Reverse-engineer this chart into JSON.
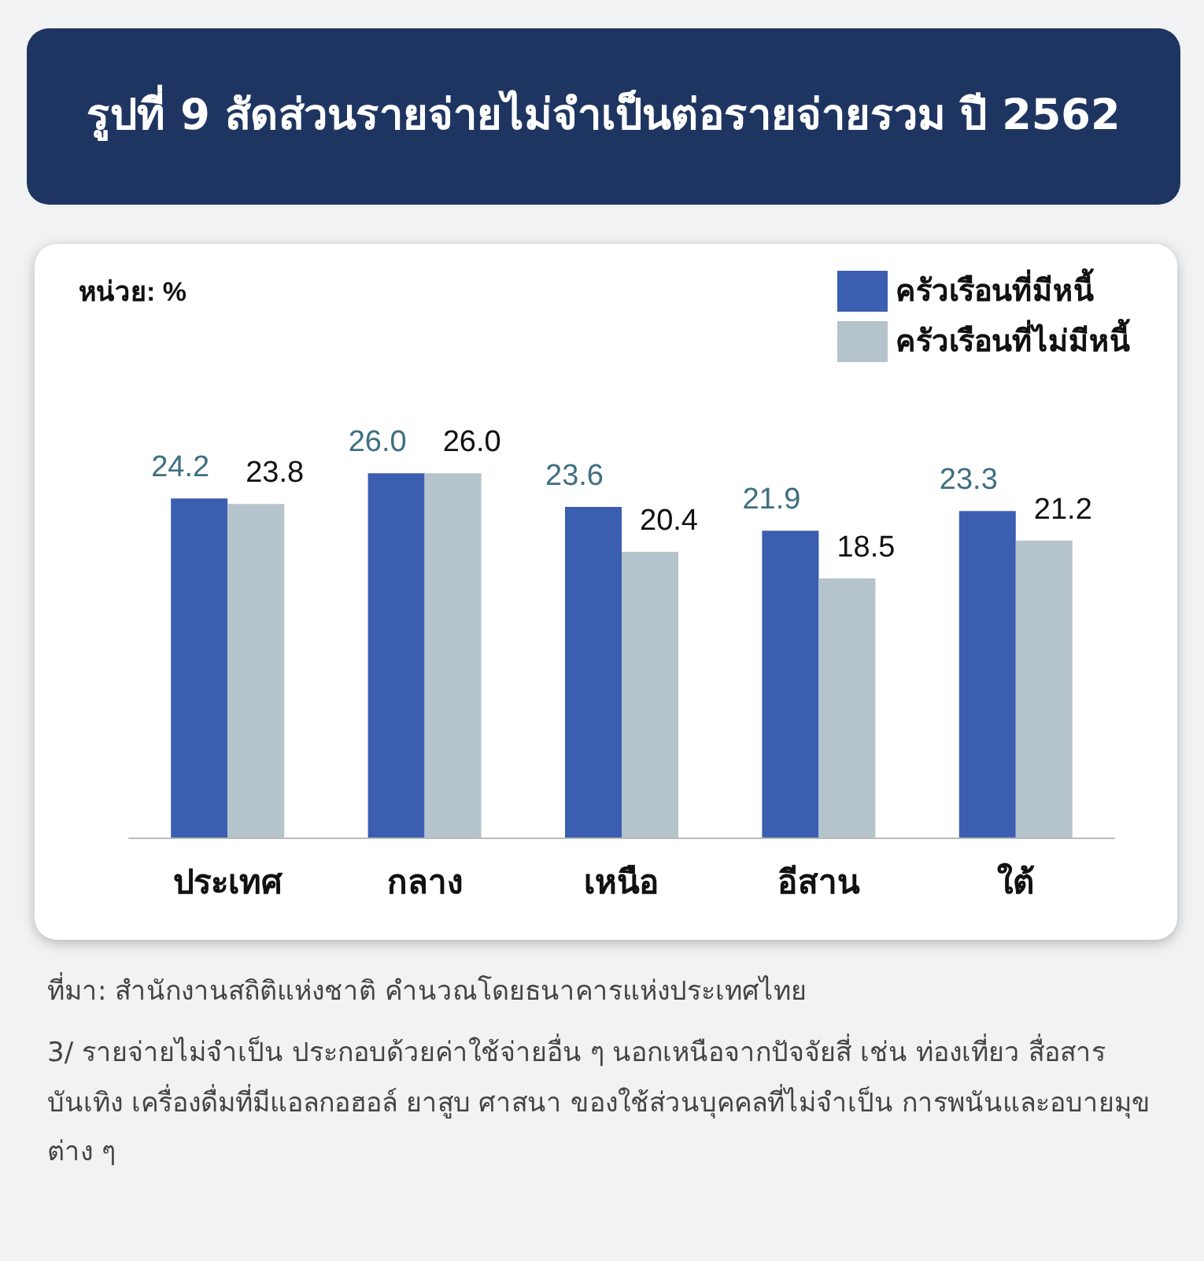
{
  "chart_data": {
    "type": "bar",
    "title": "รูปที่ 9 สัดส่วนรายจ่ายไม่จำเป็นต่อรายจ่ายรวม ปี 2562",
    "categories": [
      "ประเทศ",
      "กลาง",
      "เหนือ",
      "อีสาน",
      "ใต้"
    ],
    "series": [
      {
        "name": "ครัวเรือนที่มีหนี้",
        "color": "#3b5eb0",
        "values": [
          24.2,
          26.0,
          23.6,
          21.9,
          23.3
        ],
        "value_labels": [
          "24.2",
          "26.0",
          "23.6",
          "21.9",
          "23.3"
        ]
      },
      {
        "name": "ครัวเรือนที่ไม่มีหนี้",
        "color": "#b5c3cb",
        "values": [
          23.8,
          26.0,
          20.4,
          18.5,
          21.2
        ],
        "value_labels": [
          "23.8",
          "26.0",
          "20.4",
          "18.5",
          "21.2"
        ]
      }
    ],
    "legend": "top right",
    "tick_labels": "x",
    "annotations": [
      "หน่วย: %",
      "ที่มา: สำนักงานสถิติแห่งชาติ คำนวณโดยธนาคารแห่งประเทศไทย",
      "3/ รายจ่ายไม่จำเป็น ประกอบด้วยค่าใช้จ่ายอื่น ๆ นอกเหนือจากปัจจัยสี่ เช่น ท่องเที่ยว สื่อสาร บันเทิง เครื่องดื่มที่มีแอลกอฮอล์ ยาสูบ ศาสนา ของใช้ส่วนบุคคลที่ไม่จำเป็น การพนันและอบายมุขต่าง ๆ"
    ]
  }
}
